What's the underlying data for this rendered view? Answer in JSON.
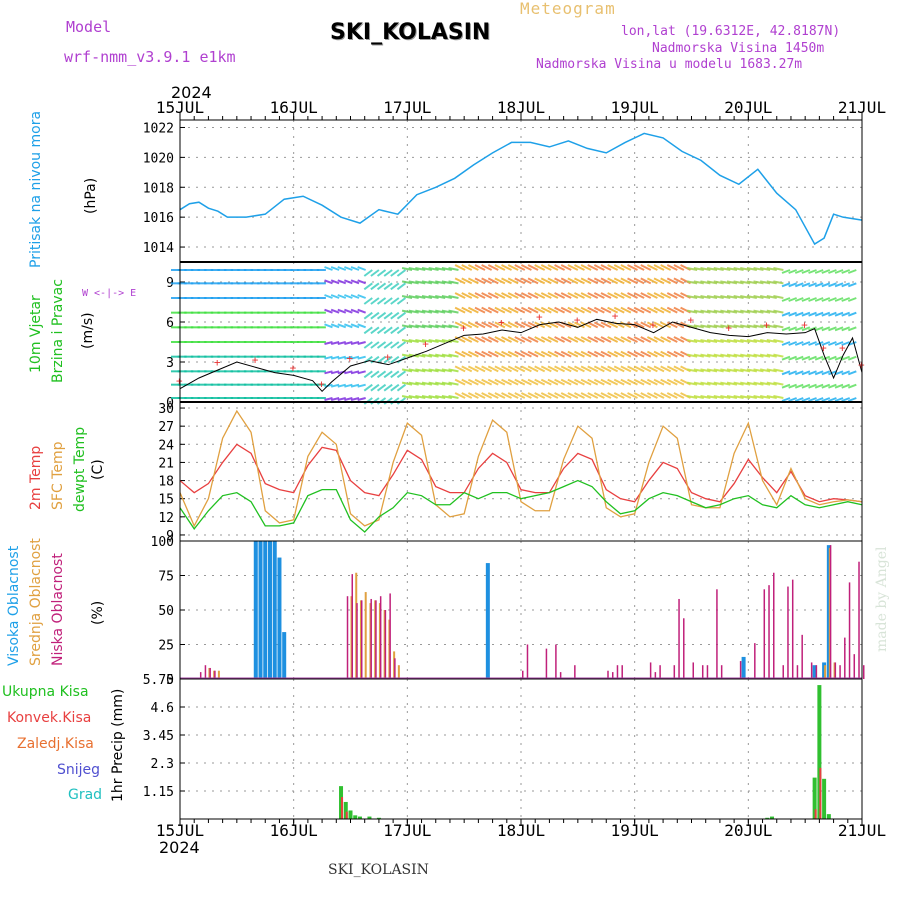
{
  "header": {
    "model_label": "Model",
    "model_value": "wrf-nmm_v3.9.1  e1km",
    "title": "SKI_KOLASIN",
    "meteogram": "Meteogram",
    "lonlat": "lon,lat (19.6312E, 42.8187N)",
    "elevation": "Nadmorska Visina 1450m",
    "model_elevation": "Nadmorska Visina u modelu 1683.27m",
    "year_top": "2024",
    "year_bottom": "2024",
    "footer": "SKI_KOLASIN",
    "made_by": "made by Angel"
  },
  "panel_labels": {
    "pressure": "Pritisak na nivou mora",
    "pressure_unit": "(hPa)",
    "wind1": "10m Vjetar",
    "wind2": "Brzina i Pravac",
    "wind_unit": "(m/s)",
    "wind_compass": "W <-|-> E",
    "temp1": "2m Temp",
    "temp2": "SFC Temp",
    "temp3": "dewpt Temp",
    "temp_unit": "(C)",
    "cloud1": "Visoka Oblacnost",
    "cloud2": "Srednja Oblacnost",
    "cloud3": "Niska Oblacnost",
    "cloud_unit": "(%)",
    "precip1": "Ukupna Kisa",
    "precip2": "Konvek.Kisa",
    "precip3": "Zaledj.Kisa",
    "precip4": "Snijeg",
    "precip5": "Grad",
    "precip_unit": "1hr Precip (mm)"
  },
  "colors": {
    "pressure": "#1ea0e8",
    "temp2m": "#e84040",
    "sfc": "#e0a040",
    "dewpt": "#20c020",
    "high": "#1e90e0",
    "mid": "#e0a040",
    "low": "#c0207a",
    "total": "#30c030",
    "konv": "#e84040",
    "snow": "#5050d0",
    "grad": "#20c0c0"
  },
  "chart_data": [
    {
      "type": "line",
      "name": "pressure",
      "xlabel_ticks": [
        "15JUL",
        "16JUL",
        "17JUL",
        "18JUL",
        "19JUL",
        "20JUL",
        "21JUL"
      ],
      "x_range_hours": [
        0,
        144
      ],
      "ylim": [
        1013,
        1022.5
      ],
      "yticks": [
        1014,
        1016,
        1018,
        1020,
        1022
      ],
      "series": [
        {
          "x": [
            0,
            2,
            4,
            6,
            8,
            10,
            14,
            18,
            22,
            26,
            30,
            34,
            38,
            42,
            46,
            50,
            54,
            58,
            62,
            66,
            70,
            74,
            78,
            82,
            86,
            90,
            94,
            98,
            102,
            106,
            110,
            114,
            118,
            122,
            126,
            130,
            134,
            136,
            138,
            140,
            144
          ],
          "values": [
            1016.5,
            1016.9,
            1017.0,
            1016.6,
            1016.4,
            1016.0,
            1016.0,
            1016.2,
            1017.2,
            1017.4,
            1016.8,
            1016.0,
            1015.6,
            1016.5,
            1016.2,
            1017.5,
            1018.0,
            1018.6,
            1019.5,
            1020.3,
            1021.0,
            1021.0,
            1020.7,
            1021.1,
            1020.6,
            1020.3,
            1021.0,
            1021.6,
            1021.3,
            1020.4,
            1019.8,
            1018.8,
            1018.2,
            1019.2,
            1017.6,
            1016.5,
            1014.2,
            1014.6,
            1016.2,
            1016.0,
            1015.8
          ]
        }
      ]
    },
    {
      "type": "line",
      "name": "wind",
      "ylim": [
        0,
        10.5
      ],
      "yticks": [
        0,
        3,
        6,
        9
      ],
      "series": [
        {
          "name": "speed",
          "x": [
            0,
            4,
            8,
            12,
            16,
            20,
            24,
            28,
            30,
            32,
            36,
            40,
            44,
            48,
            52,
            56,
            60,
            64,
            68,
            72,
            76,
            80,
            84,
            88,
            92,
            96,
            100,
            104,
            108,
            112,
            116,
            120,
            124,
            128,
            132,
            134,
            136,
            138,
            140,
            142,
            144
          ],
          "values": [
            1.0,
            1.8,
            2.4,
            3.0,
            2.6,
            2.2,
            2.0,
            1.6,
            0.8,
            1.5,
            2.7,
            3.1,
            2.8,
            3.3,
            3.8,
            4.4,
            5.0,
            5.1,
            5.4,
            5.2,
            5.8,
            6.0,
            5.6,
            6.2,
            5.9,
            5.8,
            5.2,
            6.0,
            5.6,
            5.2,
            5.0,
            4.9,
            5.2,
            5.1,
            5.2,
            5.5,
            3.5,
            1.8,
            3.5,
            4.8,
            2.2
          ]
        }
      ]
    },
    {
      "type": "line",
      "name": "temperature",
      "ylim": [
        8,
        31
      ],
      "yticks": [
        9,
        12,
        15,
        18,
        21,
        24,
        27,
        30
      ],
      "series": [
        {
          "name": "2m Temp",
          "x": [
            0,
            3,
            6,
            9,
            12,
            15,
            18,
            21,
            24,
            27,
            30,
            33,
            36,
            39,
            42,
            45,
            48,
            51,
            54,
            57,
            60,
            63,
            66,
            69,
            72,
            75,
            78,
            81,
            84,
            87,
            90,
            93,
            96,
            99,
            102,
            105,
            108,
            111,
            114,
            117,
            120,
            123,
            126,
            129,
            132,
            135,
            138,
            141,
            144
          ],
          "values": [
            18.0,
            16.0,
            17.5,
            21.0,
            24.0,
            22.5,
            17.5,
            16.5,
            16.0,
            20.5,
            23.5,
            23.0,
            18.0,
            16.0,
            15.5,
            19.0,
            23.0,
            21.5,
            17.0,
            16.0,
            16.0,
            20.0,
            22.5,
            21.0,
            16.5,
            16.0,
            16.0,
            20.0,
            22.5,
            21.5,
            16.5,
            15.0,
            14.5,
            18.0,
            21.0,
            20.0,
            16.0,
            15.0,
            14.5,
            17.5,
            21.5,
            18.5,
            16.0,
            19.5,
            15.5,
            14.5,
            15.0,
            14.8,
            14.5
          ]
        },
        {
          "name": "SFC Temp",
          "x": [
            0,
            3,
            6,
            9,
            12,
            15,
            18,
            21,
            24,
            27,
            30,
            33,
            36,
            39,
            42,
            45,
            48,
            51,
            54,
            57,
            60,
            63,
            66,
            69,
            72,
            75,
            78,
            81,
            84,
            87,
            90,
            93,
            96,
            99,
            102,
            105,
            108,
            111,
            114,
            117,
            120,
            123,
            126,
            129,
            132,
            135,
            138,
            141,
            144
          ],
          "values": [
            16.0,
            10.5,
            15.0,
            25.0,
            29.5,
            26.0,
            13.0,
            11.0,
            11.5,
            22.0,
            26.0,
            24.0,
            12.5,
            10.5,
            11.5,
            21.0,
            27.5,
            25.5,
            14.0,
            12.0,
            12.5,
            22.0,
            28.0,
            26.0,
            14.5,
            13.0,
            13.0,
            21.5,
            27.0,
            25.0,
            13.5,
            12.0,
            12.5,
            21.0,
            27.0,
            25.0,
            14.0,
            13.5,
            13.5,
            22.5,
            27.5,
            18.0,
            14.0,
            20.0,
            15.0,
            14.0,
            14.5,
            14.8,
            14.5
          ]
        },
        {
          "name": "dewpt Temp",
          "x": [
            0,
            3,
            6,
            9,
            12,
            15,
            18,
            21,
            24,
            27,
            30,
            33,
            36,
            39,
            42,
            45,
            48,
            51,
            54,
            57,
            60,
            63,
            66,
            69,
            72,
            75,
            78,
            81,
            84,
            87,
            90,
            93,
            96,
            99,
            102,
            105,
            108,
            111,
            114,
            117,
            120,
            123,
            126,
            129,
            132,
            135,
            138,
            141,
            144
          ],
          "values": [
            13.5,
            10.0,
            13.0,
            15.5,
            16.0,
            14.5,
            10.5,
            10.5,
            11.0,
            15.5,
            16.5,
            16.5,
            11.5,
            9.5,
            12.0,
            13.5,
            16.0,
            15.5,
            14.0,
            14.0,
            16.0,
            15.0,
            16.0,
            16.0,
            15.0,
            15.5,
            16.0,
            17.0,
            18.0,
            17.0,
            14.5,
            12.5,
            13.0,
            15.0,
            16.0,
            15.5,
            14.5,
            13.5,
            14.0,
            15.0,
            15.5,
            14.0,
            13.5,
            15.5,
            14.0,
            13.5,
            14.0,
            14.5,
            14.0
          ]
        }
      ]
    },
    {
      "type": "bar",
      "name": "cloud",
      "ylim": [
        0,
        100
      ],
      "yticks": [
        0,
        25,
        50,
        75,
        100
      ],
      "series": [
        {
          "name": "Visoka Oblacnost",
          "x": [
            16,
            17,
            18,
            19,
            20,
            21,
            22,
            36,
            37,
            38,
            39,
            40,
            41,
            42,
            43,
            44,
            45,
            46,
            47,
            48,
            49,
            50,
            51,
            52,
            53,
            54,
            55,
            56,
            57,
            58,
            59,
            60,
            61,
            62,
            63,
            64,
            65,
            66,
            67,
            68,
            69,
            70,
            71,
            72,
            73,
            74,
            75,
            76,
            77,
            78,
            79,
            80,
            81,
            82,
            83,
            84,
            85,
            86,
            87,
            88,
            89,
            90,
            91,
            92,
            93,
            94,
            95,
            96,
            97,
            98,
            99,
            100,
            101,
            102,
            103,
            104,
            105,
            106,
            107,
            108,
            109,
            110,
            111,
            112,
            113,
            114,
            115,
            116,
            117,
            118,
            119,
            120,
            121,
            122,
            123,
            124,
            125,
            126,
            127,
            128,
            129,
            130,
            131,
            132
          ],
          "values": [
            100,
            100,
            100,
            100,
            100,
            88,
            34,
            0,
            0,
            0,
            0,
            0,
            0,
            0,
            0,
            0,
            0,
            0,
            0,
            0,
            0,
            0,
            0,
            0,
            0,
            0,
            0,
            0,
            0,
            0,
            0,
            0,
            0,
            0,
            0,
            0,
            0,
            0,
            0,
            0,
            0,
            0,
            0,
            0,
            0,
            0,
            0,
            0,
            0,
            0,
            0,
            0,
            0,
            0,
            0,
            0,
            0,
            0,
            0,
            0,
            0,
            0,
            0,
            0,
            0,
            0,
            0,
            0,
            0,
            0,
            0,
            0,
            0,
            0,
            0,
            0,
            0,
            0,
            0,
            0,
            0,
            0,
            0,
            0,
            0,
            0,
            0,
            0,
            0,
            0,
            0,
            0,
            0,
            0,
            0,
            0,
            0,
            0,
            0,
            0,
            0,
            0,
            0,
            0
          ]
        },
        {
          "name": "high_extra",
          "x": [
            65,
            119,
            134,
            136,
            137
          ],
          "values": [
            84,
            16,
            10,
            12,
            97
          ]
        },
        {
          "name": "Srednja Oblacnost",
          "x": [
            6,
            7,
            8,
            36,
            37,
            38,
            39,
            40,
            41,
            42,
            43,
            44,
            45,
            46,
            136,
            137,
            138
          ],
          "values": [
            8,
            6,
            6,
            60,
            77,
            57,
            63,
            55,
            57,
            55,
            50,
            43,
            20,
            10,
            10,
            95,
            12
          ]
        },
        {
          "name": "Niska Oblacnost",
          "x": [
            4,
            5,
            6,
            7,
            35,
            36,
            37,
            38,
            40,
            41,
            42,
            43,
            44,
            45,
            72,
            73,
            77,
            79,
            80,
            83,
            90,
            91,
            92,
            93,
            99,
            100,
            101,
            104,
            105,
            106,
            108,
            110,
            111,
            113,
            114,
            118,
            121,
            123,
            124,
            125,
            127,
            128,
            129,
            130,
            131,
            133,
            134,
            137,
            138,
            139,
            140,
            141,
            142,
            143,
            144
          ],
          "values": [
            5,
            10,
            8,
            6,
            60,
            76,
            55,
            57,
            58,
            57,
            60,
            50,
            62,
            15,
            6,
            25,
            22,
            25,
            5,
            10,
            6,
            5,
            10,
            10,
            12,
            5,
            10,
            10,
            58,
            44,
            12,
            10,
            10,
            65,
            10,
            13,
            26,
            65,
            68,
            77,
            10,
            67,
            72,
            10,
            32,
            12,
            10,
            97,
            12,
            10,
            30,
            70,
            18,
            85,
            10
          ]
        }
      ]
    },
    {
      "type": "bar",
      "name": "precip",
      "ylim": [
        0,
        5.75
      ],
      "yticks": [
        1.15,
        2.3,
        3.45,
        4.6,
        5.75
      ],
      "series": [
        {
          "name": "Ukupna Kisa",
          "x": [
            34,
            35,
            36,
            37,
            38,
            40,
            42,
            124,
            125,
            134,
            135,
            136,
            137
          ],
          "values": [
            1.35,
            0.7,
            0.35,
            0.15,
            0.1,
            0.1,
            0.05,
            0.05,
            0.1,
            1.7,
            5.5,
            1.65,
            0.2
          ]
        },
        {
          "name": "Konvek.Kisa",
          "x": [
            34,
            35,
            134,
            135
          ],
          "values": [
            0.9,
            0.3,
            0.4,
            2.1
          ]
        }
      ]
    }
  ]
}
